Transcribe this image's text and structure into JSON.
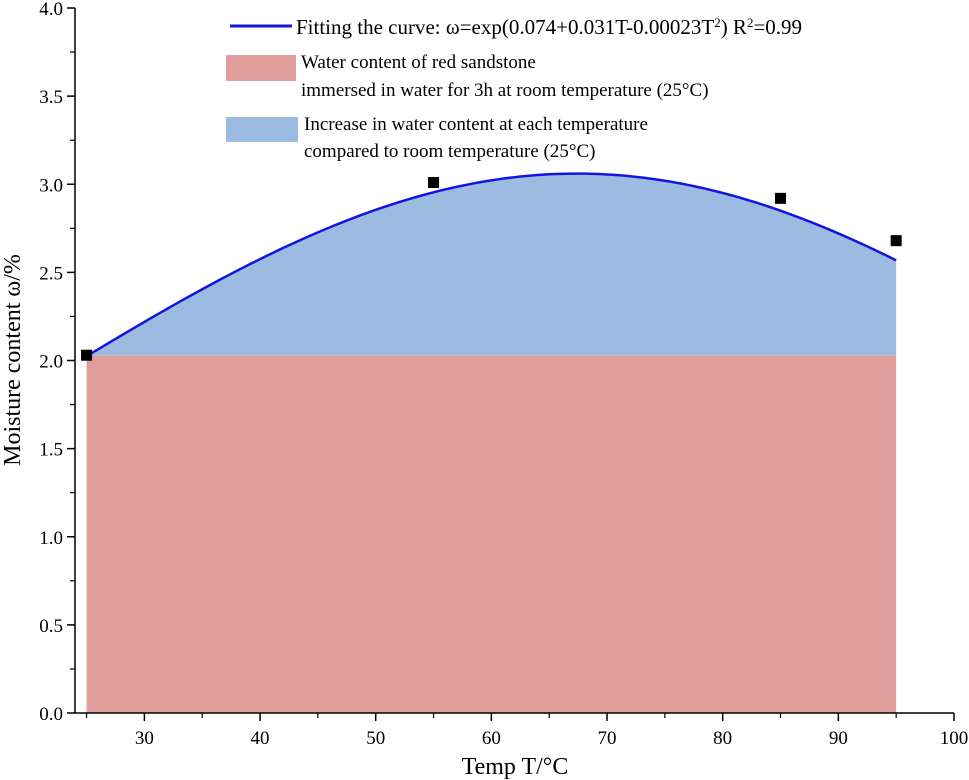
{
  "chart_data": {
    "type": "line",
    "xlabel": "Temp T/°C",
    "ylabel": "Moisture content ω/%",
    "xlim": [
      24,
      100
    ],
    "ylim": [
      0,
      4
    ],
    "x_ticks": [
      "30",
      "40",
      "50",
      "60",
      "70",
      "80",
      "90",
      "100"
    ],
    "y_ticks": [
      "0.0",
      "0.5",
      "1.0",
      "1.5",
      "2.0",
      "2.5",
      "3.0",
      "3.5",
      "4.0"
    ],
    "points": [
      {
        "x": 25,
        "y": 2.03
      },
      {
        "x": 55,
        "y": 3.01
      },
      {
        "x": 85,
        "y": 2.92
      },
      {
        "x": 95,
        "y": 2.68
      }
    ],
    "fit": {
      "a": 0.074,
      "b": 0.031,
      "c": -0.00023,
      "x_start": 25,
      "x_end": 95
    },
    "baseline_value": 2.03,
    "colors": {
      "curve": "#1414e0",
      "base_area": "#df9e9c",
      "increase_area": "#9bbbe0",
      "points": "#000000"
    },
    "legend": {
      "curve_prefix": "Fitting the curve: ω=exp(0.074+0.031T-0.00023T",
      "curve_sup1": "2",
      "curve_mid": ") R",
      "curve_sup2": "2",
      "curve_suffix": "=0.99",
      "base_line1": "Water content of red sandstone",
      "base_line2": "immersed in water for 3h at room temperature (25°C)",
      "increase_line1": "Increase in water content at each temperature",
      "increase_line2": "compared to room temperature (25°C)"
    }
  }
}
